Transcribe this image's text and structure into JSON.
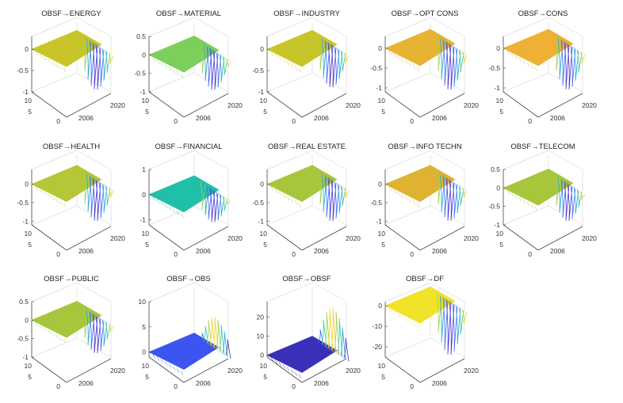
{
  "chart_data": [
    {
      "type": "surface",
      "title": "OBSF→ENERGY",
      "zlim": [
        -1,
        0.3
      ],
      "zticks": [
        "0",
        "-0.5",
        "-1"
      ],
      "zvals": [
        0,
        -0.5,
        -1
      ],
      "yticks": [
        "10",
        "5",
        "0"
      ],
      "xticks": [
        "2006",
        "2020"
      ],
      "base": 0,
      "dipmin": -0.95,
      "color": "#c8c52a"
    },
    {
      "type": "surface",
      "title": "OBSF→MATERIAL",
      "zlim": [
        -1,
        0.5
      ],
      "zticks": [
        "0.5",
        "0",
        "-0.5",
        "-1"
      ],
      "zvals": [
        0.5,
        0,
        -0.5,
        -1
      ],
      "yticks": [
        "10",
        "5",
        "0"
      ],
      "xticks": [
        "2006",
        "2020"
      ],
      "base": 0,
      "dipmin": -0.95,
      "color": "#7ccf5a"
    },
    {
      "type": "surface",
      "title": "OBSF→INDUSTRY",
      "zlim": [
        -1,
        0.3
      ],
      "zticks": [
        "0",
        "-0.5",
        "-1"
      ],
      "zvals": [
        0,
        -0.5,
        -1
      ],
      "yticks": [
        "10",
        "5",
        "0"
      ],
      "xticks": [
        "2006",
        "2020"
      ],
      "base": 0,
      "dipmin": -0.9,
      "color": "#c8c52a"
    },
    {
      "type": "surface",
      "title": "OBSF→OPT CONS",
      "zlim": [
        -1.1,
        0.3
      ],
      "zticks": [
        "0",
        "-0.5",
        "-1"
      ],
      "zvals": [
        0,
        -0.5,
        -1
      ],
      "yticks": [
        "10",
        "5",
        "0"
      ],
      "xticks": [
        "2006",
        "2020"
      ],
      "base": 0,
      "dipmin": -1.05,
      "color": "#e6b432"
    },
    {
      "type": "surface",
      "title": "OBSF→CONS",
      "zlim": [
        -1.1,
        0.3
      ],
      "zticks": [
        "0",
        "-0.5",
        "-1"
      ],
      "zvals": [
        0,
        -0.5,
        -1
      ],
      "yticks": [
        "10",
        "5",
        "0"
      ],
      "xticks": [
        "2006",
        "2020"
      ],
      "base": 0,
      "dipmin": -1.05,
      "color": "#eeb035"
    },
    {
      "type": "surface",
      "title": "OBSF→HEALTH",
      "zlim": [
        -1.1,
        0.4
      ],
      "zticks": [
        "0",
        "-0.5",
        "-1"
      ],
      "zvals": [
        0,
        -0.5,
        -1
      ],
      "yticks": [
        "10",
        "5",
        "0"
      ],
      "xticks": [
        "2006",
        "2020"
      ],
      "base": 0,
      "dipmin": -1.0,
      "color": "#b5c636"
    },
    {
      "type": "surface",
      "title": "OBSF→FINANCIAL",
      "zlim": [
        -1.2,
        1
      ],
      "zticks": [
        "1",
        "0",
        "-1"
      ],
      "zvals": [
        1,
        0,
        -1
      ],
      "yticks": [
        "10",
        "5",
        "0"
      ],
      "xticks": [
        "2006",
        "2020"
      ],
      "base": 0,
      "dipmin": -1.1,
      "color": "#20c0a8"
    },
    {
      "type": "surface",
      "title": "OBSF→REAL ESTATE",
      "zlim": [
        -1.1,
        0.4
      ],
      "zticks": [
        "0",
        "-0.5",
        "-1"
      ],
      "zvals": [
        0,
        -0.5,
        -1
      ],
      "yticks": [
        "10",
        "5",
        "0"
      ],
      "xticks": [
        "2006",
        "2020"
      ],
      "base": 0,
      "dipmin": -1.0,
      "color": "#a8c63c"
    },
    {
      "type": "surface",
      "title": "OBSF→INFO TECHN",
      "zlim": [
        -1.1,
        0.4
      ],
      "zticks": [
        "0",
        "-0.5",
        "-1"
      ],
      "zvals": [
        0,
        -0.5,
        -1
      ],
      "yticks": [
        "10",
        "5",
        "0"
      ],
      "xticks": [
        "2006",
        "2020"
      ],
      "base": 0,
      "dipmin": -1.0,
      "color": "#e0b232"
    },
    {
      "type": "surface",
      "title": "OBSF→TELECOM",
      "zlim": [
        -1,
        0.5
      ],
      "zticks": [
        "0.5",
        "0",
        "-0.5",
        "-1"
      ],
      "zvals": [
        0.5,
        0,
        -0.5,
        -1
      ],
      "yticks": [
        "10",
        "5",
        "0"
      ],
      "xticks": [
        "2006",
        "2020"
      ],
      "base": 0,
      "dipmin": -0.9,
      "color": "#a8c63c"
    },
    {
      "type": "surface",
      "title": "OBSF→PUBLIC",
      "zlim": [
        -1,
        0.5
      ],
      "zticks": [
        "0.5",
        "0",
        "-0.5",
        "-1"
      ],
      "zvals": [
        0.5,
        0,
        -0.5,
        -1
      ],
      "yticks": [
        "10",
        "5",
        "0"
      ],
      "xticks": [
        "2006",
        "2020"
      ],
      "base": 0,
      "dipmin": -0.9,
      "color": "#a8c63c"
    },
    {
      "type": "surface",
      "title": "OBSF→OBS",
      "zlim": [
        -1,
        10
      ],
      "zticks": [
        "10",
        "5",
        "0"
      ],
      "zvals": [
        10,
        5,
        0
      ],
      "yticks": [
        "10",
        "5",
        "0"
      ],
      "xticks": [
        "2006",
        "2020"
      ],
      "base": 0,
      "dipmin": 7,
      "color": "#3d55f0"
    },
    {
      "type": "surface",
      "title": "OBSF→OBSF",
      "zlim": [
        -1,
        28
      ],
      "zticks": [
        "20",
        "10",
        "0"
      ],
      "zvals": [
        20,
        10,
        0
      ],
      "yticks": [
        "10",
        "5",
        "0"
      ],
      "xticks": [
        "2006",
        "2020"
      ],
      "base": 0,
      "dipmin": 25,
      "color": "#3a30b8"
    },
    {
      "type": "surface",
      "title": "OBSF→DF",
      "zlim": [
        -25,
        2
      ],
      "zticks": [
        "0",
        "-10",
        "-20"
      ],
      "zvals": [
        0,
        -10,
        -20
      ],
      "yticks": [
        "10",
        "5",
        "0"
      ],
      "xticks": [
        "2006",
        "2020"
      ],
      "base": 0,
      "dipmin": -24,
      "color": "#f2e22a"
    }
  ]
}
